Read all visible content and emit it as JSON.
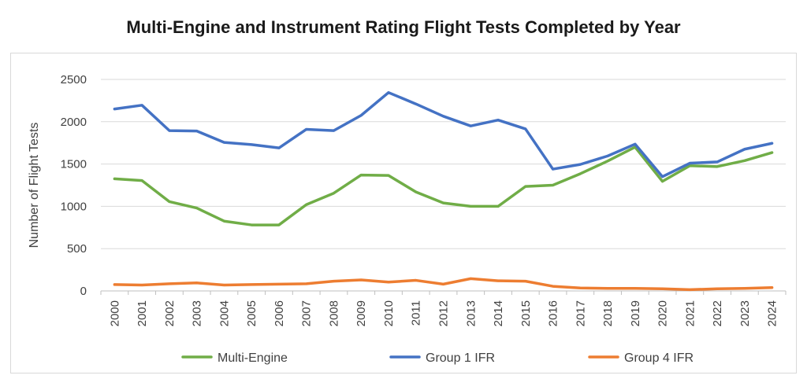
{
  "chart_data": {
    "type": "line",
    "title": "Multi-Engine and Instrument Rating Flight Tests Completed by Year",
    "xlabel": "",
    "ylabel": "Number of Flight Tests",
    "ylim": [
      0,
      2500
    ],
    "yticks": [
      "0",
      "500",
      "1000",
      "1500",
      "2000",
      "2500"
    ],
    "grid": true,
    "legend_position": "bottom",
    "categories": [
      "2000",
      "2001",
      "2002",
      "2003",
      "2004",
      "2005",
      "2006",
      "2007",
      "2008",
      "2009",
      "2010",
      "2011",
      "2012",
      "2013",
      "2014",
      "2015",
      "2016",
      "2017",
      "2018",
      "2019",
      "2020",
      "2021",
      "2022",
      "2023",
      "2024"
    ],
    "series": [
      {
        "name": "Multi-Engine",
        "color": "#70ad47",
        "values": [
          1325,
          1305,
          1055,
          980,
          825,
          780,
          780,
          1020,
          1155,
          1370,
          1365,
          1170,
          1040,
          1000,
          1000,
          1235,
          1250,
          1385,
          1535,
          1700,
          1295,
          1480,
          1470,
          1540,
          1635
        ]
      },
      {
        "name": "Group 1 IFR",
        "color": "#4472c4",
        "values": [
          2150,
          2195,
          1895,
          1890,
          1755,
          1730,
          1690,
          1910,
          1895,
          2075,
          2345,
          2210,
          2065,
          1950,
          2020,
          1915,
          1440,
          1495,
          1595,
          1735,
          1350,
          1510,
          1525,
          1675,
          1745
        ]
      },
      {
        "name": "Group 4 IFR",
        "color": "#ed7d31",
        "values": [
          75,
          70,
          85,
          95,
          70,
          75,
          80,
          85,
          115,
          130,
          105,
          125,
          80,
          145,
          120,
          115,
          55,
          35,
          30,
          30,
          25,
          15,
          25,
          30,
          40
        ]
      }
    ]
  }
}
